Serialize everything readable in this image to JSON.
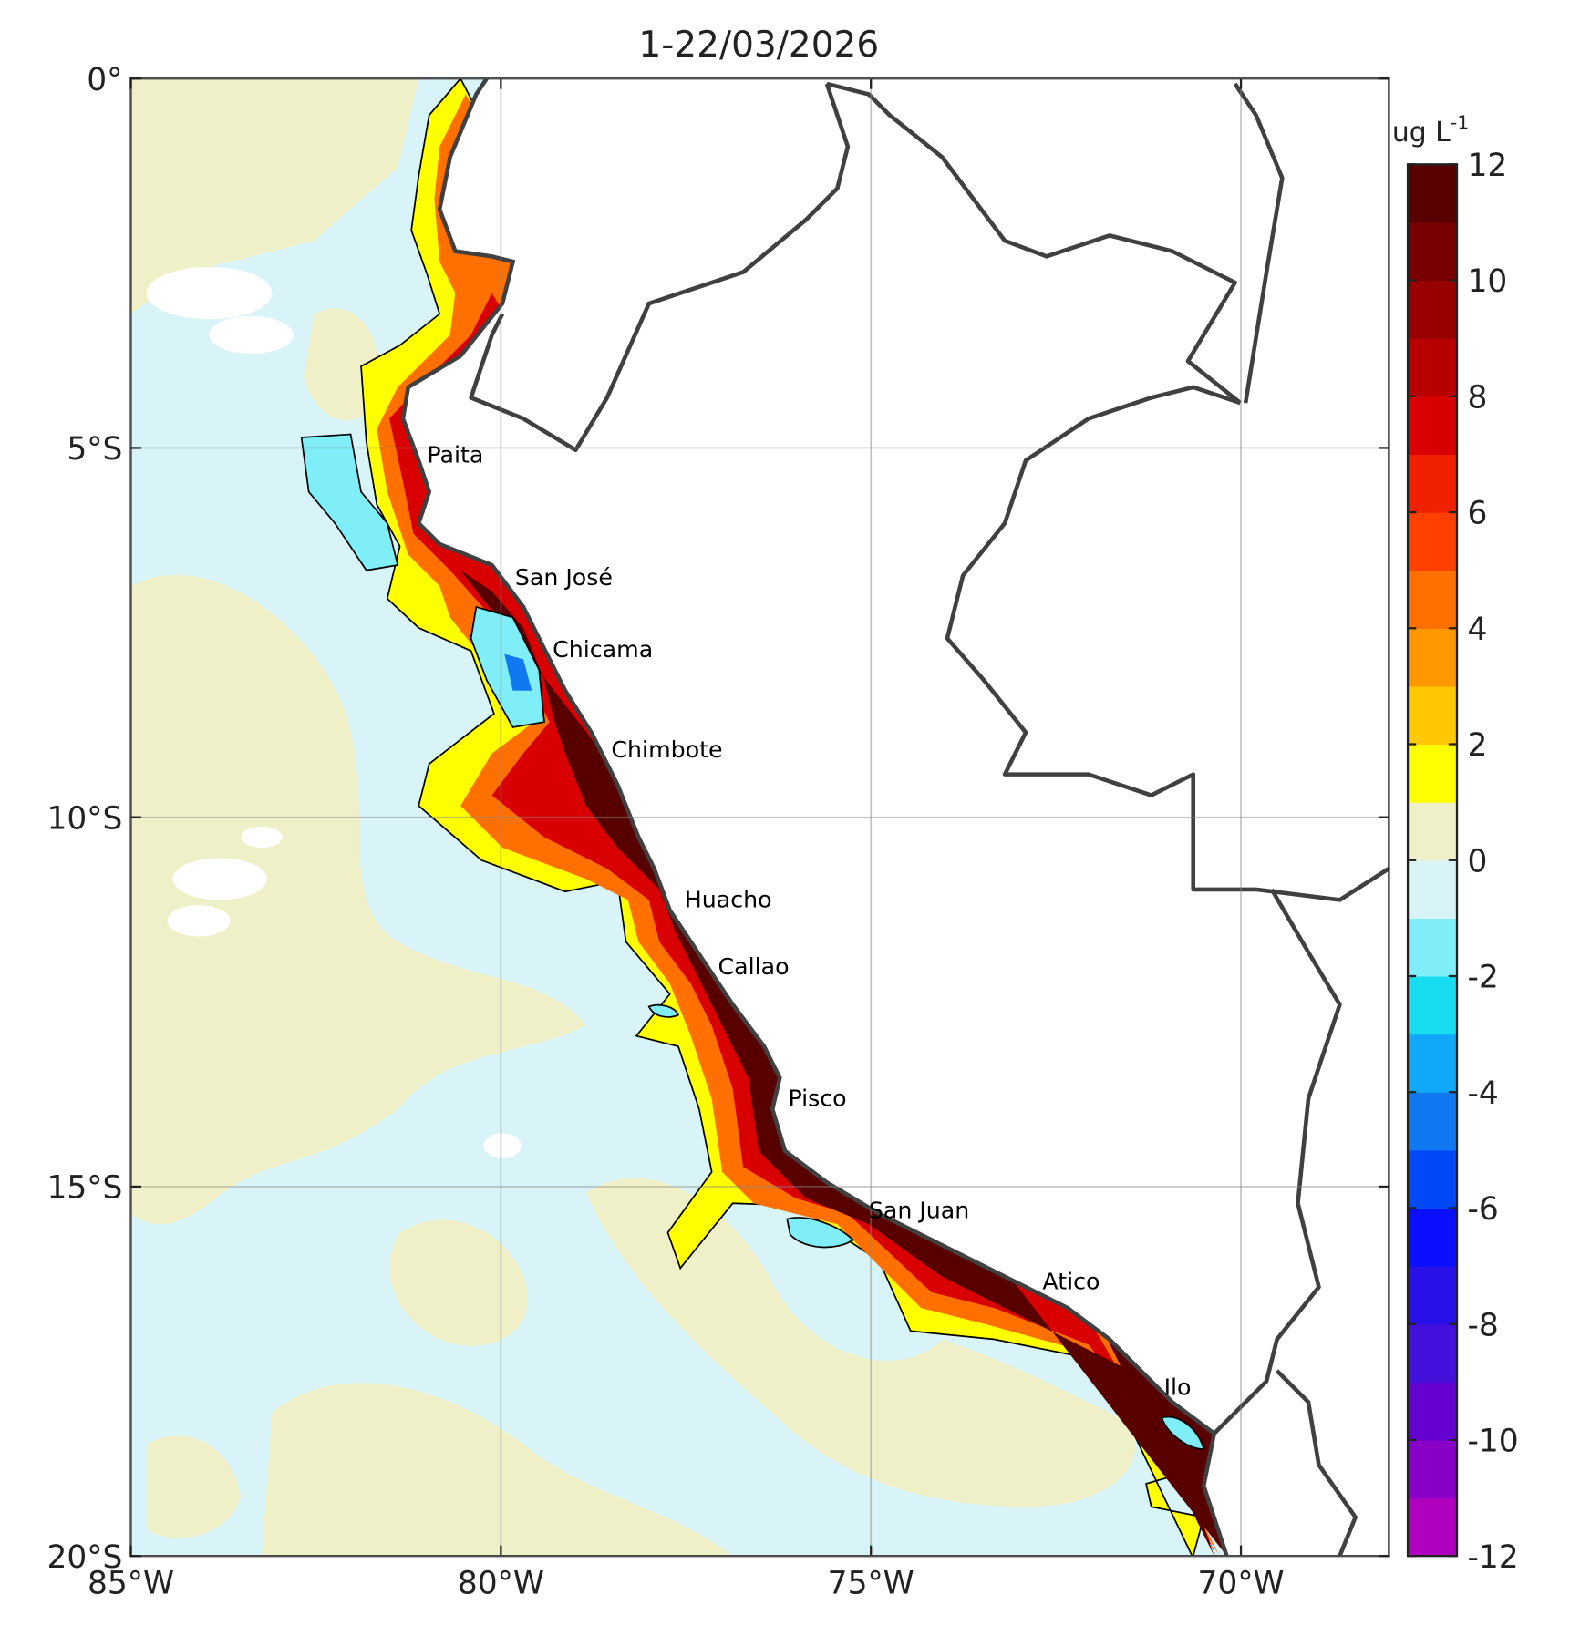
{
  "title": "1-22/03/2026",
  "map": {
    "xlim": [
      -85,
      -68
    ],
    "ylim": [
      -20,
      0
    ],
    "xticks": [
      {
        "value": -85,
        "label": "85°W"
      },
      {
        "value": -80,
        "label": "80°W"
      },
      {
        "value": -75,
        "label": "75°W"
      },
      {
        "value": -70,
        "label": "70°W"
      }
    ],
    "yticks": [
      {
        "value": 0,
        "label": "0°"
      },
      {
        "value": -5,
        "label": "5°S"
      },
      {
        "value": -10,
        "label": "10°S"
      },
      {
        "value": -15,
        "label": "15°S"
      },
      {
        "value": -20,
        "label": "20°S"
      }
    ],
    "grid": true,
    "places": [
      "Paita",
      "San José",
      "Chicama",
      "Chimbote",
      "Huacho",
      "Callao",
      "Pisco",
      "San Juan",
      "Atico",
      "Ilo"
    ]
  },
  "colorbar": {
    "unit": "ug L",
    "unit_exponent": "-1",
    "lim": [
      -12,
      12
    ],
    "ticks": [
      -12,
      -10,
      -8,
      -6,
      -4,
      -2,
      0,
      2,
      4,
      6,
      8,
      10,
      12
    ],
    "colors": [
      "#b000c0",
      "#8800c8",
      "#6400d0",
      "#4410dc",
      "#2810e8",
      "#0a10ff",
      "#0048f8",
      "#1078f0",
      "#10a8f8",
      "#18dcf0",
      "#80eef8",
      "#d8f4f8",
      "#f0f0c8",
      "#ffff00",
      "#ffc800",
      "#ff9800",
      "#ff7000",
      "#ff4000",
      "#f02000",
      "#d80000",
      "#b80000",
      "#980000",
      "#780000",
      "#580000"
    ]
  }
}
